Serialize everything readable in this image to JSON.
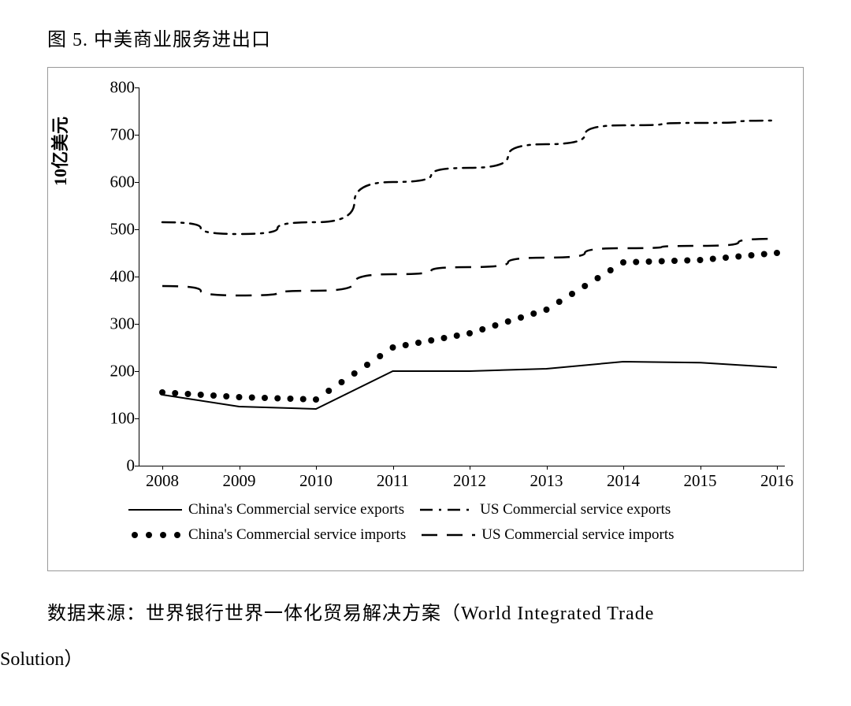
{
  "figure_title": "图 5. 中美商业服务进出口",
  "source_line1": "数据来源：世界银行世界一体化贸易解决方案（World Integrated Trade",
  "source_line2": "Solution）",
  "chart": {
    "type": "line",
    "y_axis_label": "10亿美元",
    "ylim": [
      0,
      800
    ],
    "ytick_step": 100,
    "y_ticks": [
      0,
      100,
      200,
      300,
      400,
      500,
      600,
      700,
      800
    ],
    "x_categories": [
      "2008",
      "2009",
      "2010",
      "2011",
      "2012",
      "2013",
      "2014",
      "2015",
      "2016"
    ],
    "background_color": "#ffffff",
    "axis_color": "#000000",
    "text_color": "#000000",
    "tick_fontsize": 21,
    "ylabel_fontsize": 22,
    "ylabel_fontweight": "bold",
    "line_color": "#000000",
    "series": {
      "china_exports": {
        "label": "China's Commercial service exports",
        "style": "solid",
        "line_width": 2,
        "values": [
          150,
          125,
          120,
          200,
          200,
          205,
          220,
          218,
          208
        ]
      },
      "us_exports": {
        "label": "US Commercial service exports",
        "style": "dash-dot",
        "line_width": 2.5,
        "dash_pattern": "16 8 3 8",
        "values": [
          515,
          490,
          515,
          600,
          630,
          680,
          720,
          725,
          730
        ]
      },
      "china_imports": {
        "label": "China's Commercial service imports",
        "style": "dotted-markers",
        "marker_radius": 4,
        "values": [
          155,
          145,
          140,
          250,
          280,
          330,
          430,
          435,
          450
        ]
      },
      "us_imports": {
        "label": "US Commercial service imports",
        "style": "dashed",
        "line_width": 2.5,
        "dash_pattern": "20 12",
        "values": [
          380,
          360,
          370,
          405,
          420,
          440,
          460,
          465,
          480
        ]
      }
    },
    "legend_order": [
      "china_exports",
      "us_exports",
      "china_imports",
      "us_imports"
    ],
    "legend_fontsize": 19
  }
}
